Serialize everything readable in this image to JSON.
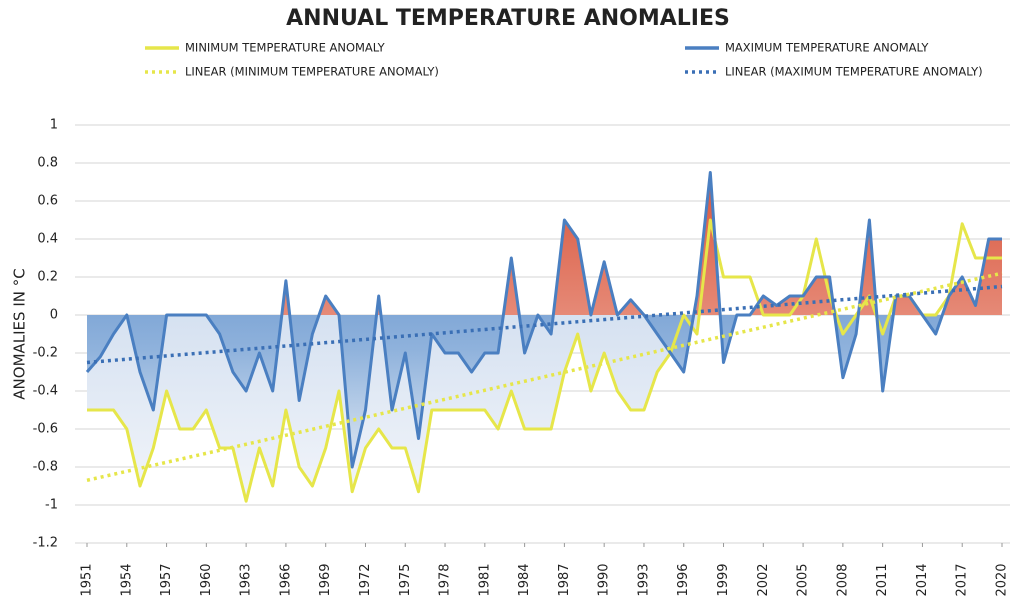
{
  "chart_data": {
    "type": "line",
    "title": "ANNUAL TEMPERATURE ANOMALIES",
    "y_label": "ANOMALIES IN °C",
    "x": [
      1951,
      1952,
      1953,
      1954,
      1955,
      1956,
      1957,
      1958,
      1959,
      1960,
      1961,
      1962,
      1963,
      1964,
      1965,
      1966,
      1967,
      1968,
      1969,
      1970,
      1971,
      1972,
      1973,
      1974,
      1975,
      1976,
      1977,
      1978,
      1979,
      1980,
      1981,
      1982,
      1983,
      1984,
      1985,
      1986,
      1987,
      1988,
      1989,
      1990,
      1991,
      1992,
      1993,
      1994,
      1995,
      1996,
      1997,
      1998,
      1999,
      2000,
      2001,
      2002,
      2003,
      2004,
      2005,
      2006,
      2007,
      2008,
      2009,
      2010,
      2011,
      2012,
      2013,
      2014,
      2015,
      2016,
      2017,
      2018,
      2019,
      2020
    ],
    "series": [
      {
        "name": "MINIMUM TEMPERATURE ANOMALY",
        "color": "#e6e64a",
        "style": "solid",
        "values": [
          -0.5,
          -0.5,
          -0.5,
          -0.6,
          -0.9,
          -0.7,
          -0.4,
          -0.6,
          -0.6,
          -0.5,
          -0.7,
          -0.7,
          -0.98,
          -0.7,
          -0.9,
          -0.5,
          -0.8,
          -0.9,
          -0.7,
          -0.4,
          -0.93,
          -0.7,
          -0.6,
          -0.7,
          -0.7,
          -0.93,
          -0.5,
          -0.5,
          -0.5,
          -0.5,
          -0.5,
          -0.6,
          -0.4,
          -0.6,
          -0.6,
          -0.6,
          -0.3,
          -0.1,
          -0.4,
          -0.2,
          -0.4,
          -0.5,
          -0.5,
          -0.3,
          -0.2,
          0,
          -0.1,
          0.5,
          0.2,
          0.2,
          0.2,
          0,
          0,
          0,
          0.1,
          0.4,
          0.1,
          -0.1,
          0,
          0.1,
          -0.1,
          0.1,
          0.1,
          0,
          0,
          0.1,
          0.48,
          0.3,
          0.3,
          0.3
        ]
      },
      {
        "name": "MAXIMUM TEMPERATURE ANOMALY",
        "color": "#4a7fc1",
        "style": "solid",
        "values": [
          -0.3,
          -0.22,
          -0.1,
          0,
          -0.3,
          -0.5,
          0,
          0,
          0,
          0,
          -0.1,
          -0.3,
          -0.4,
          -0.2,
          -0.4,
          0.18,
          -0.45,
          -0.1,
          0.1,
          0,
          -0.8,
          -0.5,
          0.1,
          -0.5,
          -0.2,
          -0.65,
          -0.1,
          -0.2,
          -0.2,
          -0.3,
          -0.2,
          -0.2,
          0.3,
          -0.2,
          0,
          -0.1,
          0.5,
          0.4,
          0,
          0.28,
          0,
          0.08,
          0,
          -0.1,
          -0.2,
          -0.3,
          0.1,
          0.75,
          -0.25,
          0,
          0,
          0.1,
          0.05,
          0.1,
          0.1,
          0.2,
          0.2,
          -0.33,
          -0.1,
          0.5,
          -0.4,
          0.1,
          0.1,
          0,
          -0.1,
          0.1,
          0.2,
          0.05,
          0.4,
          0.4
        ]
      },
      {
        "name": "LINEAR (MINIMUM TEMPERATURE ANOMALY)",
        "color": "#e6e64a",
        "style": "dotted",
        "x": [
          1951,
          2020
        ],
        "values": [
          -0.87,
          0.22
        ]
      },
      {
        "name": "LINEAR (MAXIMUM TEMPERATURE ANOMALY)",
        "color": "#3a6fb5",
        "style": "dotted",
        "x": [
          1951,
          2020
        ],
        "values": [
          -0.25,
          0.15
        ]
      }
    ],
    "xlim": [
      1951,
      2020
    ],
    "xticks": [
      1951,
      1954,
      1957,
      1960,
      1963,
      1966,
      1969,
      1972,
      1975,
      1978,
      1981,
      1984,
      1987,
      1990,
      1993,
      1996,
      1999,
      2002,
      2005,
      2008,
      2011,
      2014,
      2017,
      2020
    ],
    "ylim": [
      -1.2,
      1
    ],
    "yticks": [
      -1.2,
      -1,
      -0.8,
      -0.6,
      -0.4,
      -0.2,
      0,
      0.2,
      0.4,
      0.6,
      0.8,
      1
    ],
    "grid": true
  }
}
